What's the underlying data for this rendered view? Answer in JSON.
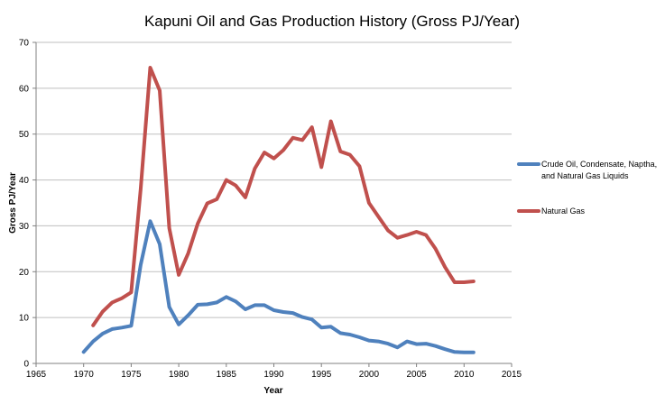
{
  "chart_data": {
    "type": "line",
    "title": "Kapuni Oil and Gas Production History (Gross PJ/Year)",
    "xlabel": "Year",
    "ylabel": "Gross PJ/Year",
    "xlim": [
      1965,
      2015
    ],
    "ylim": [
      0,
      70
    ],
    "x_ticks": [
      1965,
      1970,
      1975,
      1980,
      1985,
      1990,
      1995,
      2000,
      2005,
      2010,
      2015
    ],
    "y_ticks": [
      0,
      10,
      20,
      30,
      40,
      50,
      60,
      70
    ],
    "grid": "horizontal",
    "legend_position": "right",
    "series": [
      {
        "name_lines": [
          "Crude Oil, Condensate, Naptha,",
          "and Natural Gas Liquids"
        ],
        "color": "#4f81bd",
        "x": [
          1970,
          1971,
          1972,
          1973,
          1974,
          1975,
          1976,
          1977,
          1978,
          1979,
          1980,
          1981,
          1982,
          1983,
          1984,
          1985,
          1986,
          1987,
          1988,
          1989,
          1990,
          1991,
          1992,
          1993,
          1994,
          1995,
          1996,
          1997,
          1998,
          1999,
          2000,
          2001,
          2002,
          2003,
          2004,
          2005,
          2006,
          2007,
          2008,
          2009,
          2010,
          2011
        ],
        "values": [
          2.5,
          4.8,
          6.5,
          7.5,
          7.8,
          8.2,
          21.5,
          31.0,
          26.0,
          12.3,
          8.5,
          10.5,
          12.8,
          12.9,
          13.3,
          14.5,
          13.5,
          11.8,
          12.7,
          12.7,
          11.6,
          11.2,
          11.0,
          10.1,
          9.6,
          7.8,
          8.0,
          6.6,
          6.3,
          5.7,
          5.0,
          4.8,
          4.3,
          3.5,
          4.8,
          4.2,
          4.3,
          3.8,
          3.1,
          2.5,
          2.4,
          2.4
        ]
      },
      {
        "name_lines": [
          "Natural Gas"
        ],
        "color": "#c0504d",
        "x": [
          1971,
          1972,
          1973,
          1974,
          1975,
          1976,
          1977,
          1978,
          1979,
          1980,
          1981,
          1982,
          1983,
          1984,
          1985,
          1986,
          1987,
          1988,
          1989,
          1990,
          1991,
          1992,
          1993,
          1994,
          1995,
          1996,
          1997,
          1998,
          1999,
          2000,
          2001,
          2002,
          2003,
          2004,
          2005,
          2006,
          2007,
          2008,
          2009,
          2010,
          2011
        ],
        "values": [
          8.3,
          11.3,
          13.3,
          14.2,
          15.5,
          38.0,
          64.5,
          59.5,
          29.5,
          19.3,
          24.0,
          30.5,
          34.9,
          35.8,
          40.0,
          38.8,
          36.2,
          42.5,
          46.0,
          44.7,
          46.5,
          49.2,
          48.7,
          51.5,
          42.8,
          52.8,
          46.2,
          45.5,
          43.0,
          35.0,
          32.0,
          29.0,
          27.4,
          28.0,
          28.7,
          28.0,
          25.0,
          21.0,
          17.7,
          17.7,
          17.9
        ]
      }
    ]
  }
}
